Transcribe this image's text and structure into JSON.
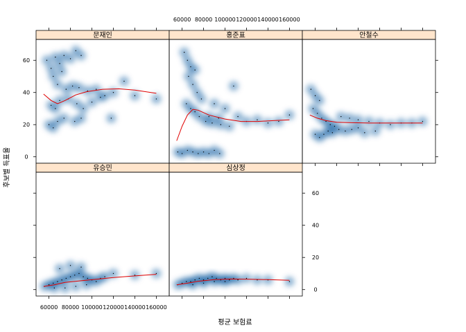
{
  "chart_data": {
    "type": "scatter",
    "layout": "lattice-smoothscatter",
    "xlabel": "평균 보험료",
    "ylabel": "후보별 득표율",
    "x_ticks": [
      60000,
      80000,
      100000,
      120000,
      140000,
      160000
    ],
    "y_ticks": [
      0,
      20,
      40,
      60
    ],
    "xlim": [
      48000,
      172000
    ],
    "ylim": [
      -4,
      73
    ],
    "smoother_color": "#e00000",
    "density_color": "#08519c",
    "strip_color": "#ffe5cc",
    "panels": [
      {
        "name": "문재인",
        "smooth_x": [
          55000,
          62000,
          68000,
          75000,
          85000,
          95000,
          110000,
          125000,
          140000,
          160000
        ],
        "smooth_y": [
          39,
          35,
          33,
          35,
          38.5,
          40.5,
          42,
          42.3,
          41.5,
          39.5
        ],
        "points": [
          [
            58000,
            60
          ],
          [
            62000,
            55
          ],
          [
            66000,
            62
          ],
          [
            70000,
            58
          ],
          [
            74000,
            63
          ],
          [
            80000,
            61
          ],
          [
            85000,
            66
          ],
          [
            90000,
            63
          ],
          [
            64000,
            50
          ],
          [
            72000,
            53
          ],
          [
            68000,
            45
          ],
          [
            76000,
            42
          ],
          [
            82000,
            44
          ],
          [
            88000,
            43
          ],
          [
            96000,
            41
          ],
          [
            104000,
            42
          ],
          [
            112000,
            38
          ],
          [
            120000,
            40
          ],
          [
            130000,
            47
          ],
          [
            140000,
            38
          ],
          [
            160000,
            36
          ],
          [
            62000,
            32
          ],
          [
            66000,
            30
          ],
          [
            70000,
            35
          ],
          [
            78000,
            36
          ],
          [
            86000,
            33
          ],
          [
            92000,
            30
          ],
          [
            60000,
            20
          ],
          [
            64000,
            18
          ],
          [
            68000,
            22
          ],
          [
            74000,
            24
          ],
          [
            84000,
            22
          ],
          [
            90000,
            24
          ],
          [
            118000,
            24
          ],
          [
            100000,
            34
          ],
          [
            108000,
            37
          ]
        ]
      },
      {
        "name": "홍준표",
        "smooth_x": [
          55000,
          60000,
          65000,
          70000,
          75000,
          85000,
          100000,
          115000,
          130000,
          145000,
          160000
        ],
        "smooth_y": [
          10,
          19,
          26,
          29.5,
          29,
          26,
          23.5,
          22,
          22,
          22.5,
          23
        ],
        "points": [
          [
            56000,
            3
          ],
          [
            60000,
            2
          ],
          [
            65000,
            4
          ],
          [
            70000,
            3
          ],
          [
            75000,
            2
          ],
          [
            80000,
            3
          ],
          [
            85000,
            2
          ],
          [
            90000,
            4
          ],
          [
            95000,
            2
          ],
          [
            62000,
            65
          ],
          [
            65000,
            60
          ],
          [
            68000,
            56
          ],
          [
            72000,
            54
          ],
          [
            66000,
            50
          ],
          [
            70000,
            45
          ],
          [
            74000,
            40
          ],
          [
            78000,
            36
          ],
          [
            64000,
            33
          ],
          [
            68000,
            30
          ],
          [
            72000,
            28
          ],
          [
            76000,
            25
          ],
          [
            82000,
            22
          ],
          [
            88000,
            21
          ],
          [
            96000,
            20
          ],
          [
            104000,
            19
          ],
          [
            112000,
            25
          ],
          [
            100000,
            30
          ],
          [
            90000,
            33
          ],
          [
            120000,
            22
          ],
          [
            130000,
            23
          ],
          [
            160000,
            26
          ],
          [
            85000,
            25
          ],
          [
            94000,
            24
          ],
          [
            108000,
            44
          ],
          [
            150000,
            22
          ],
          [
            140000,
            21
          ]
        ]
      },
      {
        "name": "안철수",
        "smooth_x": [
          55000,
          62000,
          70000,
          80000,
          95000,
          110000,
          125000,
          140000,
          160000
        ],
        "smooth_y": [
          26,
          24,
          22.5,
          21.5,
          21.2,
          21,
          21,
          21,
          21
        ],
        "points": [
          [
            56000,
            42
          ],
          [
            60000,
            38
          ],
          [
            64000,
            35
          ],
          [
            58000,
            30
          ],
          [
            62000,
            27
          ],
          [
            66000,
            24
          ],
          [
            70000,
            22
          ],
          [
            74000,
            20
          ],
          [
            78000,
            19
          ],
          [
            60000,
            14
          ],
          [
            64000,
            12
          ],
          [
            68000,
            14
          ],
          [
            72000,
            16
          ],
          [
            76000,
            15
          ],
          [
            82000,
            17
          ],
          [
            88000,
            16
          ],
          [
            94000,
            17
          ],
          [
            100000,
            18
          ],
          [
            84000,
            25
          ],
          [
            92000,
            24
          ],
          [
            100000,
            23
          ],
          [
            110000,
            22
          ],
          [
            120000,
            21
          ],
          [
            130000,
            20
          ],
          [
            140000,
            21
          ],
          [
            150000,
            21
          ],
          [
            160000,
            22
          ],
          [
            106000,
            15
          ],
          [
            116000,
            16
          ]
        ]
      },
      {
        "name": "유승민",
        "smooth_x": [
          55000,
          65000,
          75000,
          90000,
          105000,
          120000,
          140000,
          160000
        ],
        "smooth_y": [
          2,
          3,
          4.5,
          5.5,
          6.5,
          7.5,
          8.5,
          9.5
        ],
        "points": [
          [
            56000,
            2
          ],
          [
            60000,
            3
          ],
          [
            64000,
            4
          ],
          [
            68000,
            5
          ],
          [
            72000,
            6
          ],
          [
            76000,
            7
          ],
          [
            80000,
            8
          ],
          [
            84000,
            9
          ],
          [
            88000,
            10
          ],
          [
            92000,
            8
          ],
          [
            96000,
            7
          ],
          [
            100000,
            6
          ],
          [
            104000,
            5
          ],
          [
            108000,
            7
          ],
          [
            112000,
            8
          ],
          [
            120000,
            10
          ],
          [
            140000,
            9
          ],
          [
            160000,
            10
          ],
          [
            70000,
            13
          ],
          [
            80000,
            15
          ],
          [
            90000,
            14
          ],
          [
            65000,
            1
          ],
          [
            75000,
            1
          ],
          [
            85000,
            2
          ],
          [
            95000,
            3
          ]
        ]
      },
      {
        "name": "심상정",
        "smooth_x": [
          55000,
          65000,
          75000,
          90000,
          105000,
          120000,
          140000,
          160000
        ],
        "smooth_y": [
          3,
          4,
          5.2,
          6.2,
          6.6,
          6.5,
          6.2,
          5.8
        ],
        "points": [
          [
            56000,
            3
          ],
          [
            60000,
            4
          ],
          [
            64000,
            5
          ],
          [
            68000,
            5
          ],
          [
            72000,
            6
          ],
          [
            76000,
            7
          ],
          [
            80000,
            6
          ],
          [
            84000,
            7
          ],
          [
            88000,
            8
          ],
          [
            92000,
            7
          ],
          [
            96000,
            6
          ],
          [
            100000,
            7
          ],
          [
            104000,
            6
          ],
          [
            108000,
            7
          ],
          [
            112000,
            6
          ],
          [
            120000,
            7
          ],
          [
            130000,
            6
          ],
          [
            140000,
            6
          ],
          [
            160000,
            5
          ],
          [
            70000,
            3
          ],
          [
            80000,
            4
          ],
          [
            90000,
            5
          ],
          [
            100000,
            5
          ]
        ]
      }
    ]
  }
}
